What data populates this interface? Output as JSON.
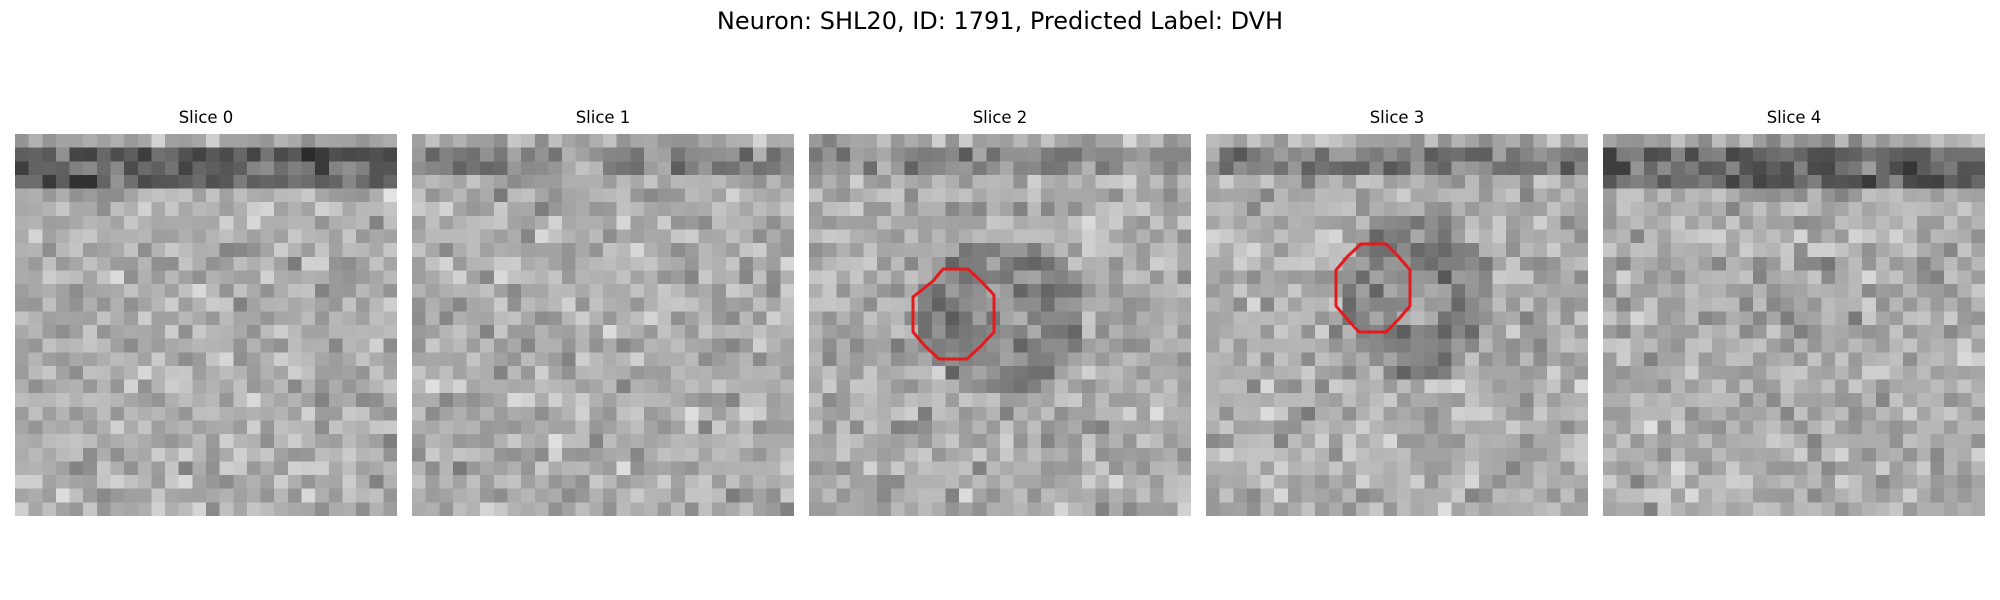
{
  "title": "Neuron: SHL20, ID: 1791, Predicted Label: DVH",
  "colors": {
    "roi_contour": "#e41a1c",
    "background": "#ffffff"
  },
  "image": {
    "grid_size": 28,
    "colormap": "gray"
  },
  "slices": [
    {
      "label": "Slice 0",
      "has_roi": false,
      "dark_band_rows": [
        1,
        2,
        3
      ],
      "dark_band_strength": 0.35,
      "seed": 11
    },
    {
      "label": "Slice 1",
      "has_roi": false,
      "dark_band_rows": [
        1,
        2
      ],
      "dark_band_strength": 0.15,
      "seed": 23
    },
    {
      "label": "Slice 2",
      "has_roi": true,
      "dark_band_rows": [
        1,
        2
      ],
      "dark_band_strength": 0.15,
      "seed": 37
    },
    {
      "label": "Slice 3",
      "has_roi": true,
      "dark_band_rows": [
        1,
        2
      ],
      "dark_band_strength": 0.2,
      "seed": 51
    },
    {
      "label": "Slice 4",
      "has_roi": false,
      "dark_band_rows": [
        1,
        2,
        3
      ],
      "dark_band_strength": 0.3,
      "seed": 67
    }
  ]
}
